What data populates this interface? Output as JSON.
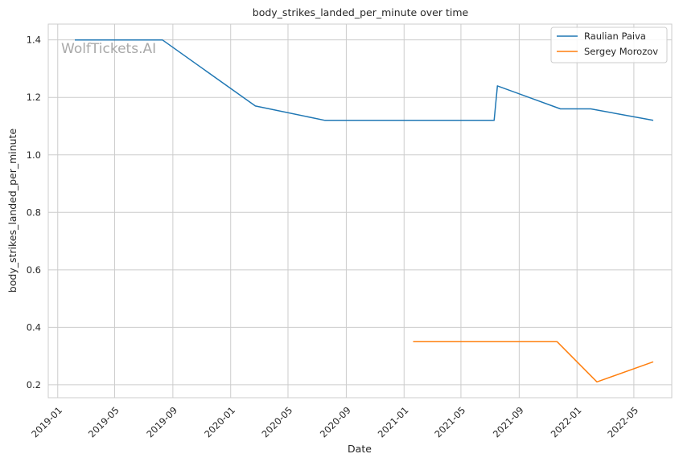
{
  "chart_data": {
    "type": "line",
    "title": "body_strikes_landed_per_minute over time",
    "xlabel": "Date",
    "ylabel": "body_strikes_landed_per_minute",
    "x_type": "date",
    "xlim": [
      "2018-12-12",
      "2022-07-20"
    ],
    "ylim": [
      0.155,
      1.455
    ],
    "x_ticks": [
      "2019-01-01",
      "2019-05-01",
      "2019-09-01",
      "2020-01-01",
      "2020-05-01",
      "2020-09-01",
      "2021-01-01",
      "2021-05-01",
      "2021-09-01",
      "2022-01-01",
      "2022-05-01"
    ],
    "x_tick_labels": [
      "2019-01",
      "2019-05",
      "2019-09",
      "2020-01",
      "2020-05",
      "2020-09",
      "2021-01",
      "2021-05",
      "2021-09",
      "2022-01",
      "2022-05"
    ],
    "y_ticks": [
      0.2,
      0.4,
      0.6,
      0.8,
      1.0,
      1.2,
      1.4
    ],
    "y_tick_labels": [
      "0.2",
      "0.4",
      "0.6",
      "0.8",
      "1.0",
      "1.2",
      "1.4"
    ],
    "grid": true,
    "legend_position": "top-right",
    "series": [
      {
        "name": "Raulian Paiva",
        "color": "#1f77b4",
        "points": [
          {
            "x": "2019-02-06",
            "y": 1.4
          },
          {
            "x": "2019-08-10",
            "y": 1.4
          },
          {
            "x": "2020-02-22",
            "y": 1.17
          },
          {
            "x": "2020-07-18",
            "y": 1.12
          },
          {
            "x": "2021-07-10",
            "y": 1.12
          },
          {
            "x": "2021-07-17",
            "y": 1.24
          },
          {
            "x": "2021-11-27",
            "y": 1.16
          },
          {
            "x": "2022-01-30",
            "y": 1.16
          },
          {
            "x": "2022-06-11",
            "y": 1.12
          }
        ]
      },
      {
        "name": "Sergey Morozov",
        "color": "#ff7f0e",
        "points": [
          {
            "x": "2021-01-20",
            "y": 0.35
          },
          {
            "x": "2021-11-20",
            "y": 0.35
          },
          {
            "x": "2022-02-12",
            "y": 0.21
          },
          {
            "x": "2022-06-11",
            "y": 0.28
          }
        ]
      }
    ],
    "watermark": "WolfTickets.AI"
  }
}
